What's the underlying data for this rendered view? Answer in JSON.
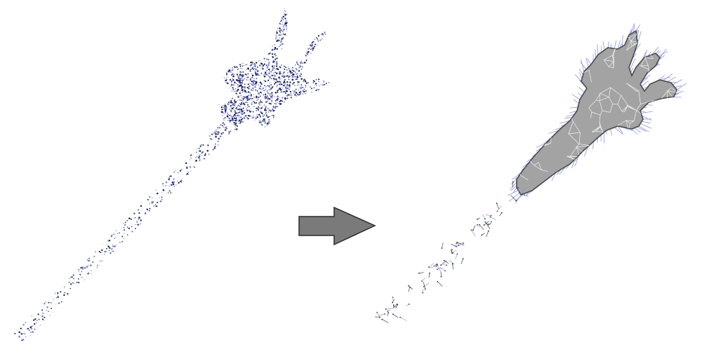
{
  "figure": {
    "panels": [
      {
        "id": "input",
        "kind": "point-cloud",
        "subject": "trident"
      },
      {
        "id": "output",
        "kind": "triangle-mesh-with-normals",
        "subject": "trident"
      }
    ],
    "connector": {
      "kind": "arrow",
      "direction": "right"
    },
    "colors": {
      "background": "#ffffff",
      "point_dark": "#1c1f5e",
      "point_light": "#6a72c4",
      "mesh_fill": "#a3a3a3",
      "mesh_edge": "#f2f2f2",
      "mesh_outline": "#4a4a4a",
      "normal_stroke": "#8c94e6",
      "sparse_point": "#222222",
      "arrow_fill": "#7a7a7a",
      "arrow_stroke": "#2a2a2a"
    }
  }
}
